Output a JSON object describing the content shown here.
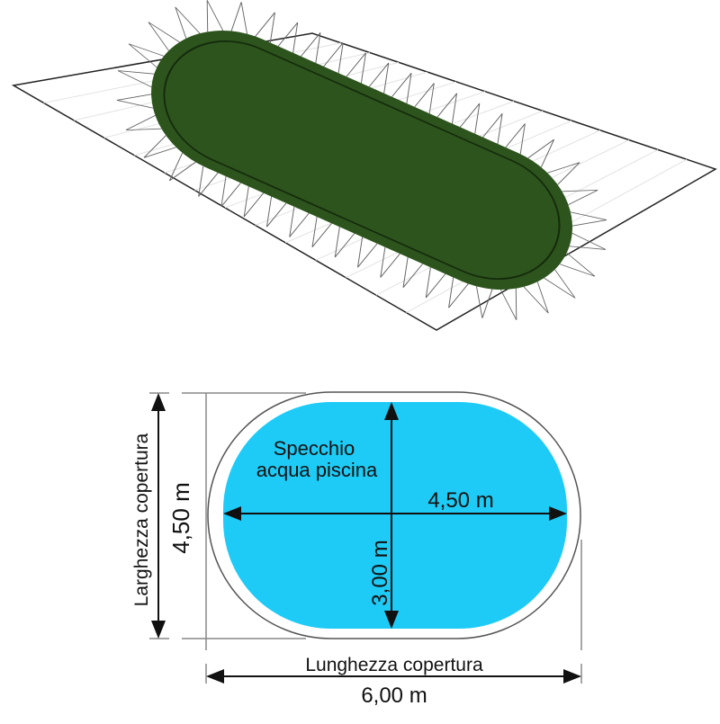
{
  "colors": {
    "cover_green": "#2d541d",
    "water_blue": "#1ecbf6",
    "plane_edge": "#222222"
  },
  "diagram": {
    "water_label_line1": "Specchio",
    "water_label_line2": "acqua piscina",
    "water_length": "4,50 m",
    "water_width": "3,00 m",
    "cover_width_label": "Larghezza copertura",
    "cover_width_value": "4,50 m",
    "cover_length_label": "Lunghezza copertura",
    "cover_length_value": "6,00 m"
  }
}
